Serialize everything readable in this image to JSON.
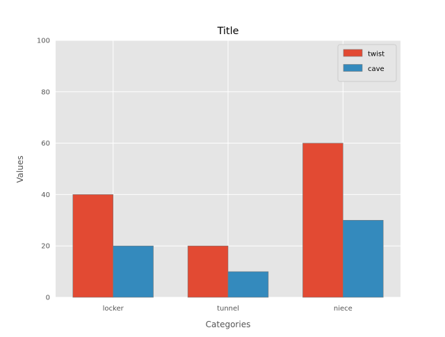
{
  "chart_data": {
    "type": "bar",
    "title": "Title",
    "xlabel": "Categories",
    "ylabel": "Values",
    "categories": [
      "locker",
      "tunnel",
      "niece"
    ],
    "series": [
      {
        "name": "twist",
        "values": [
          40,
          20,
          60
        ],
        "color": "#E24A33"
      },
      {
        "name": "cave",
        "values": [
          20,
          10,
          30
        ],
        "color": "#348ABD"
      }
    ],
    "ylim": [
      0,
      100
    ],
    "yticks": [
      0,
      20,
      40,
      60,
      80,
      100
    ],
    "grid": true,
    "legend_position": "top-right",
    "style": {
      "plot_background": "#E5E5E5",
      "grid_color": "#FFFFFF",
      "text_color": "#555555"
    }
  }
}
